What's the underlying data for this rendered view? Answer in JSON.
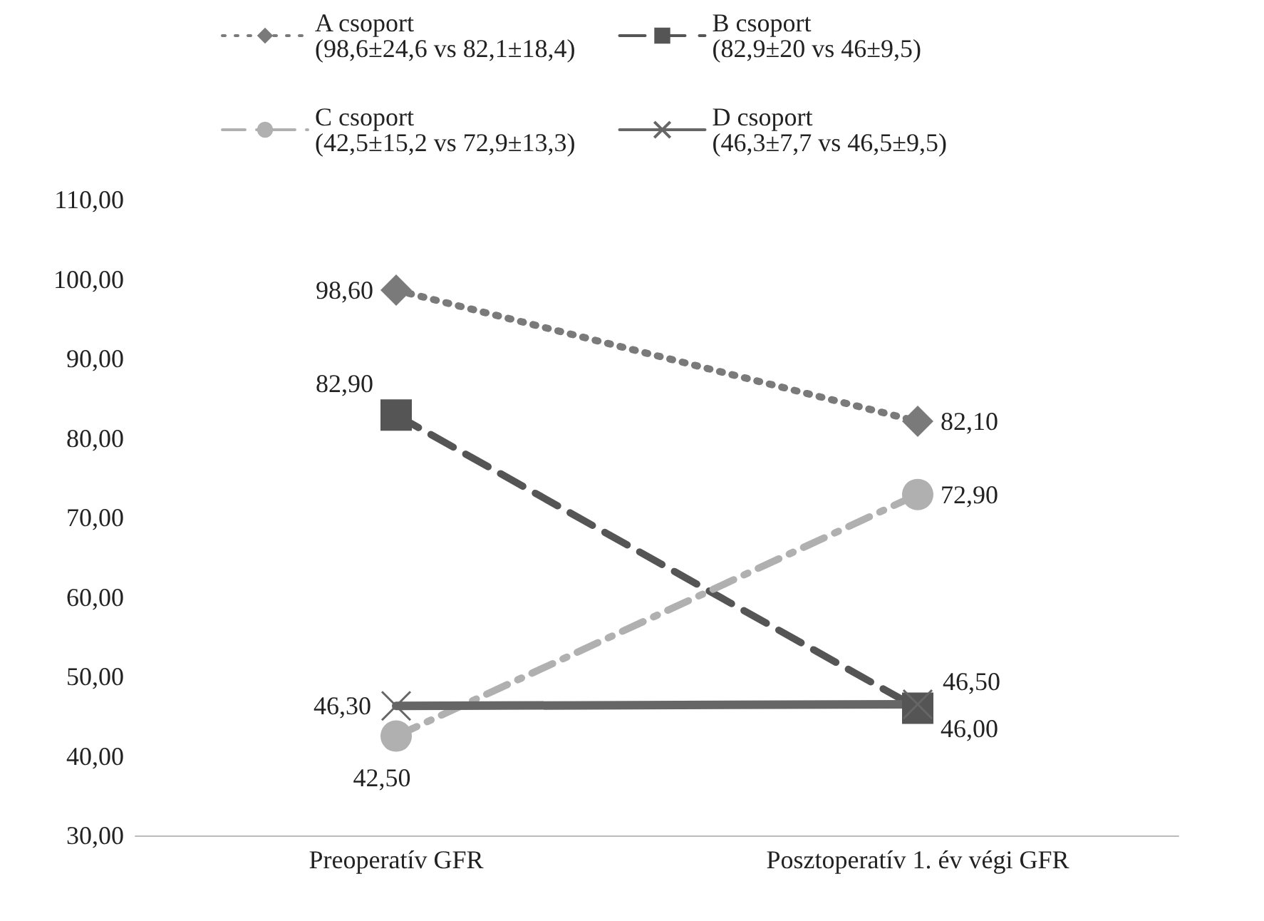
{
  "chart_data": {
    "type": "line",
    "categories": [
      "Preoperatív GFR",
      "Posztoperatív 1. év végi GFR"
    ],
    "series": [
      {
        "name": "A csoport\n(98,6±24,6 vs 82,1±18,4)",
        "color": "#7a7a7a",
        "values": [
          98.6,
          82.1
        ],
        "value_labels": [
          "98,60",
          "82,10"
        ],
        "marker": "diamond",
        "line_style": "dotted"
      },
      {
        "name": "B csoport\n(82,9±20 vs 46±9,5)",
        "color": "#555555",
        "values": [
          82.9,
          46.0
        ],
        "value_labels": [
          "82,90",
          "46,00"
        ],
        "marker": "square",
        "line_style": "dashed"
      },
      {
        "name": "C csoport\n(42,5±15,2 vs 72,9±13,3)",
        "color": "#b0b0b0",
        "values": [
          42.5,
          72.9
        ],
        "value_labels": [
          "42,50",
          "72,90"
        ],
        "marker": "circle",
        "line_style": "dashdot"
      },
      {
        "name": "D csoport\n(46,3±7,7 vs 46,5±9,5)",
        "color": "#666666",
        "values": [
          46.3,
          46.5
        ],
        "value_labels": [
          "46,30",
          "46,50"
        ],
        "marker": "cross",
        "line_style": "solid"
      }
    ],
    "ylim": [
      30,
      110
    ],
    "yticks": [
      {
        "value": 30,
        "label": "30,00"
      },
      {
        "value": 40,
        "label": "40,00"
      },
      {
        "value": 50,
        "label": "50,00"
      },
      {
        "value": 60,
        "label": "60,00"
      },
      {
        "value": 70,
        "label": "70,00"
      },
      {
        "value": 80,
        "label": "80,00"
      },
      {
        "value": 90,
        "label": "90,00"
      },
      {
        "value": 100,
        "label": "100,00"
      },
      {
        "value": 110,
        "label": "110,00"
      }
    ],
    "grid": false,
    "legend": "top"
  }
}
